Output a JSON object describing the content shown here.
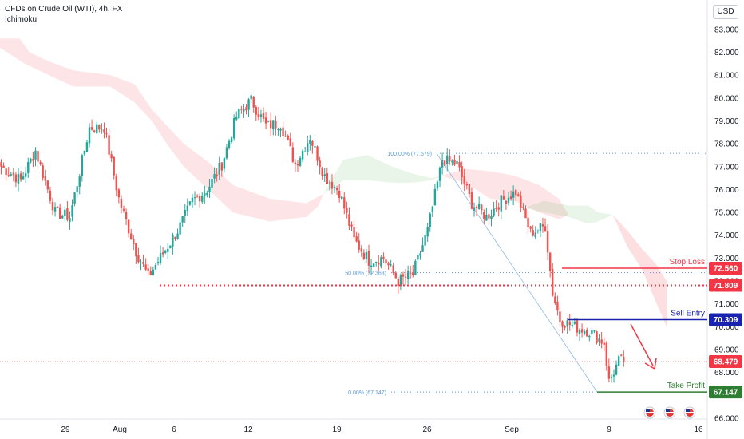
{
  "header": {
    "title": "CFDs on Crude Oil (WTI), 4h, FX",
    "indicator": "Ichimoku"
  },
  "currency": "USD",
  "chart_data": {
    "type": "candlestick",
    "ylim": [
      65.7,
      83.8
    ],
    "y_ticks": [
      66.0,
      67.0,
      68.0,
      69.0,
      70.0,
      71.0,
      72.0,
      73.0,
      74.0,
      75.0,
      76.0,
      77.0,
      78.0,
      79.0,
      80.0,
      81.0,
      82.0,
      83.0
    ],
    "x_ticks": [
      "29",
      "Aug",
      "6",
      "12",
      "19",
      "26",
      "Sep",
      "9",
      "16"
    ],
    "price_anchors": [
      [
        0,
        77.0
      ],
      [
        8,
        76.4
      ],
      [
        14,
        77.7
      ],
      [
        22,
        75.0
      ],
      [
        28,
        74.8
      ],
      [
        36,
        78.7
      ],
      [
        42,
        78.7
      ],
      [
        48,
        75.6
      ],
      [
        55,
        73.3
      ],
      [
        60,
        72.2
      ],
      [
        66,
        73.2
      ],
      [
        72,
        74.2
      ],
      [
        78,
        75.5
      ],
      [
        84,
        76.0
      ],
      [
        90,
        77.1
      ],
      [
        96,
        79.2
      ],
      [
        102,
        79.9
      ],
      [
        108,
        78.8
      ],
      [
        114,
        78.9
      ],
      [
        120,
        77.1
      ],
      [
        126,
        78.3
      ],
      [
        132,
        76.6
      ],
      [
        138,
        75.9
      ],
      [
        144,
        73.8
      ],
      [
        150,
        72.9
      ],
      [
        156,
        73.0
      ],
      [
        162,
        72.0
      ],
      [
        168,
        72.3
      ],
      [
        174,
        74.2
      ],
      [
        180,
        77.3
      ],
      [
        186,
        77.1
      ],
      [
        192,
        75.4
      ],
      [
        198,
        74.8
      ],
      [
        204,
        75.5
      ],
      [
        210,
        75.9
      ],
      [
        216,
        74.1
      ],
      [
        222,
        74.4
      ],
      [
        225,
        71.5
      ],
      [
        228,
        70.3
      ],
      [
        234,
        70.0
      ],
      [
        240,
        69.8
      ],
      [
        246,
        69.3
      ],
      [
        248,
        67.6
      ],
      [
        252,
        68.5
      ],
      [
        254,
        68.48
      ]
    ],
    "cloud_red": [
      [
        [
          0,
          82.2
        ],
        [
          10,
          81.5
        ],
        [
          20,
          81.0
        ],
        [
          30,
          80.5
        ],
        [
          45,
          80.5
        ],
        [
          55,
          79.8
        ],
        [
          62,
          79.0
        ],
        [
          68,
          78.0
        ],
        [
          75,
          77.0
        ],
        [
          85,
          76.0
        ],
        [
          95,
          75.0
        ],
        [
          110,
          74.6
        ],
        [
          125,
          74.8
        ],
        [
          130,
          75.3
        ],
        [
          132,
          75.8
        ]
      ],
      [
        [
          0,
          82.6
        ],
        [
          8,
          82.6
        ],
        [
          12,
          82.0
        ],
        [
          20,
          81.6
        ],
        [
          30,
          81.2
        ],
        [
          45,
          81.0
        ],
        [
          55,
          80.6
        ],
        [
          62,
          79.5
        ],
        [
          68,
          78.8
        ],
        [
          75,
          78.0
        ],
        [
          85,
          77.2
        ],
        [
          95,
          76.2
        ],
        [
          110,
          75.6
        ],
        [
          125,
          75.4
        ],
        [
          130,
          75.7
        ],
        [
          132,
          75.8
        ]
      ]
    ],
    "cloud_green": [
      [
        [
          132,
          75.8
        ],
        [
          140,
          77.3
        ],
        [
          150,
          77.5
        ],
        [
          160,
          77.0
        ],
        [
          168,
          76.7
        ],
        [
          176,
          76.5
        ],
        [
          180,
          76.6
        ]
      ],
      [
        [
          132,
          75.8
        ],
        [
          140,
          76.4
        ],
        [
          150,
          76.4
        ],
        [
          160,
          76.3
        ],
        [
          168,
          76.3
        ],
        [
          176,
          76.4
        ],
        [
          180,
          76.6
        ]
      ]
    ],
    "cloud_red_2": [
      [
        [
          180,
          76.6
        ],
        [
          190,
          76.3
        ],
        [
          200,
          75.6
        ],
        [
          210,
          75.5
        ],
        [
          220,
          75.0
        ],
        [
          228,
          74.7
        ],
        [
          232,
          74.9
        ]
      ],
      [
        [
          180,
          76.6
        ],
        [
          190,
          76.9
        ],
        [
          200,
          76.8
        ],
        [
          210,
          76.6
        ],
        [
          220,
          76.2
        ],
        [
          228,
          75.6
        ],
        [
          232,
          74.9
        ]
      ]
    ],
    "cloud_green_2": [
      [
        [
          214,
          75.2
        ],
        [
          222,
          75.5
        ],
        [
          232,
          75.3
        ],
        [
          240,
          75.3
        ],
        [
          244,
          75.0
        ],
        [
          250,
          74.9
        ]
      ],
      [
        [
          214,
          75.2
        ],
        [
          222,
          75.0
        ],
        [
          232,
          74.8
        ],
        [
          240,
          74.5
        ],
        [
          244,
          74.6
        ],
        [
          250,
          74.9
        ]
      ]
    ],
    "cloud_red_3": [
      [
        [
          250,
          74.9
        ],
        [
          256,
          73.5
        ],
        [
          262,
          72.5
        ],
        [
          268,
          71.0
        ],
        [
          272,
          70.0
        ]
      ],
      [
        [
          250,
          74.9
        ],
        [
          256,
          74.2
        ],
        [
          262,
          73.4
        ],
        [
          268,
          72.7
        ],
        [
          272,
          72.0
        ]
      ]
    ],
    "levels": {
      "stop_loss": {
        "label": "Stop Loss",
        "price": "72.560",
        "value": 72.56,
        "color": "#f23645"
      },
      "resistance": {
        "price": "71.809",
        "value": 71.809,
        "color": "#f23645"
      },
      "sell_entry": {
        "label": "Sell Entry",
        "price": "70.309",
        "value": 70.309,
        "color": "#1a23b0"
      },
      "current": {
        "price": "68.479",
        "value": 68.479,
        "color": "#f23645"
      },
      "take_profit": {
        "label": "Take Profit",
        "price": "67.147",
        "value": 67.147,
        "color": "#2e7d32"
      }
    },
    "fib": [
      {
        "label": "100.00% (77.579)",
        "value": 77.579
      },
      {
        "label": "50.00% (72.363)",
        "value": 72.363
      },
      {
        "label": "0.00% (67.147)",
        "value": 67.147
      }
    ],
    "colors": {
      "up": "#26a69a",
      "down": "#ef5350",
      "fib": "#5b9bd5",
      "arrow": "#f23645"
    },
    "events": [
      "us-flag-icon",
      "us-flag-icon",
      "us-flag-icon"
    ]
  }
}
